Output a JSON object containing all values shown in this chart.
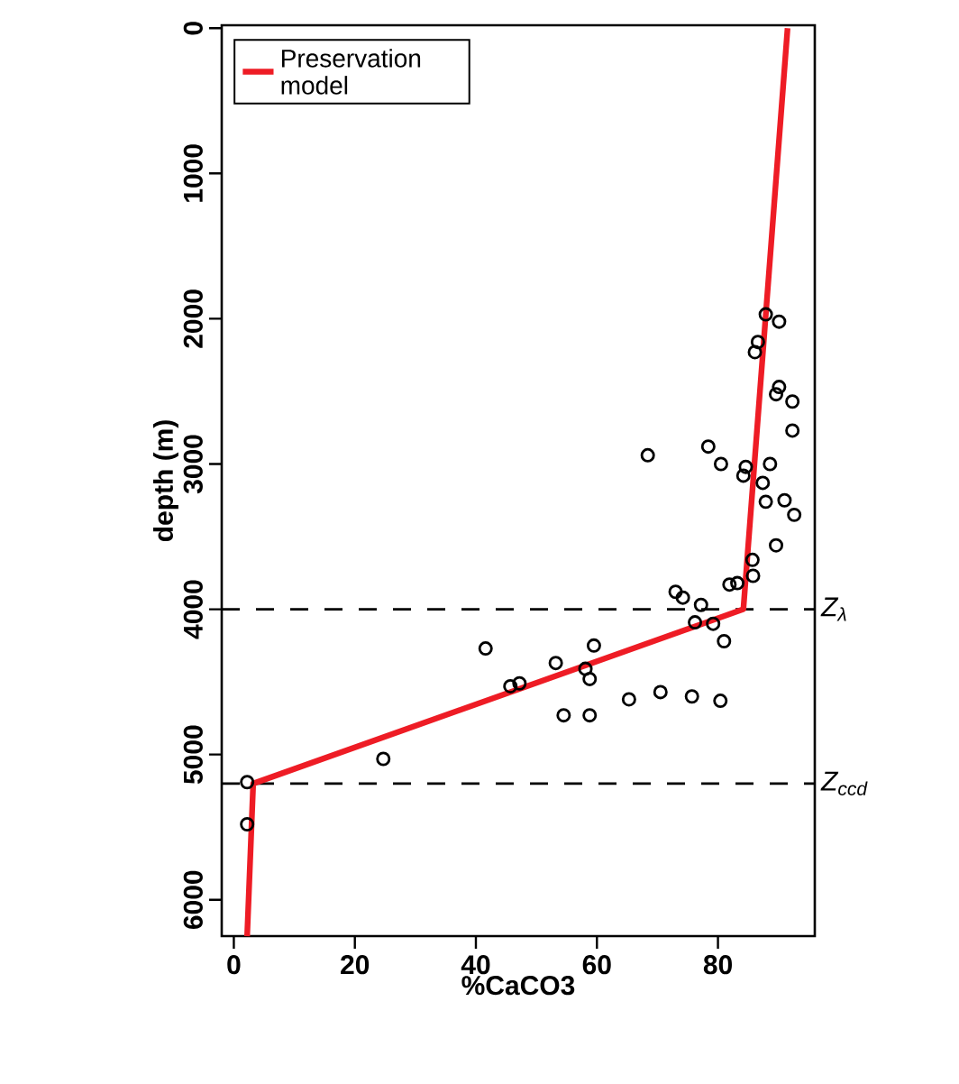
{
  "chart_data": {
    "type": "scatter",
    "xlabel": "%CaCO3",
    "ylabel": "depth (m)",
    "xlim": [
      -2,
      96
    ],
    "ylim": [
      6250,
      -20
    ],
    "xticks": [
      0,
      20,
      40,
      60,
      80
    ],
    "yticks": [
      0,
      1000,
      2000,
      3000,
      4000,
      5000,
      6000
    ],
    "legend": "top left",
    "series": [
      {
        "marker": "circle",
        "color": "#000000",
        "x": [
          87.9,
          90.1,
          86.6,
          86.1,
          90.1,
          89.6,
          92.3,
          92.3,
          68.4,
          78.4,
          80.5,
          84.6,
          84.2,
          88.6,
          87.4,
          87.9,
          91.0,
          92.6,
          89.6,
          85.7,
          85.8,
          81.9,
          83.2,
          73.0,
          74.2,
          77.2,
          76.2,
          79.2,
          81.0,
          41.6,
          53.2,
          59.5,
          58.1,
          58.8,
          45.7,
          47.2,
          54.5,
          58.8,
          65.3,
          70.5,
          75.7,
          80.4,
          24.7,
          2.2,
          2.2
        ],
        "values": [
          1970,
          2020,
          2160,
          2230,
          2470,
          2520,
          2570,
          2770,
          2940,
          2880,
          3000,
          3020,
          3080,
          3000,
          3130,
          3260,
          3250,
          3350,
          3560,
          3660,
          3770,
          3830,
          3820,
          3880,
          3920,
          3970,
          4090,
          4100,
          4220,
          4270,
          4370,
          4250,
          4410,
          4480,
          4530,
          4510,
          4730,
          4730,
          4620,
          4570,
          4600,
          4630,
          5030,
          5190,
          5480
        ]
      },
      {
        "type": "line",
        "name": "Preservation model",
        "color": "#ee1c25",
        "x": [
          91.5,
          84.2,
          3.2,
          2.2
        ],
        "values": [
          0,
          4000,
          5200,
          6250
        ]
      }
    ],
    "ref_lines": [
      {
        "axis": "y",
        "value": 4000,
        "label": "Z$_{λ}$",
        "line_style": "dashed"
      },
      {
        "axis": "y",
        "value": 5200,
        "label": "Z$_{ccd}$",
        "line_style": "dashed"
      }
    ]
  }
}
